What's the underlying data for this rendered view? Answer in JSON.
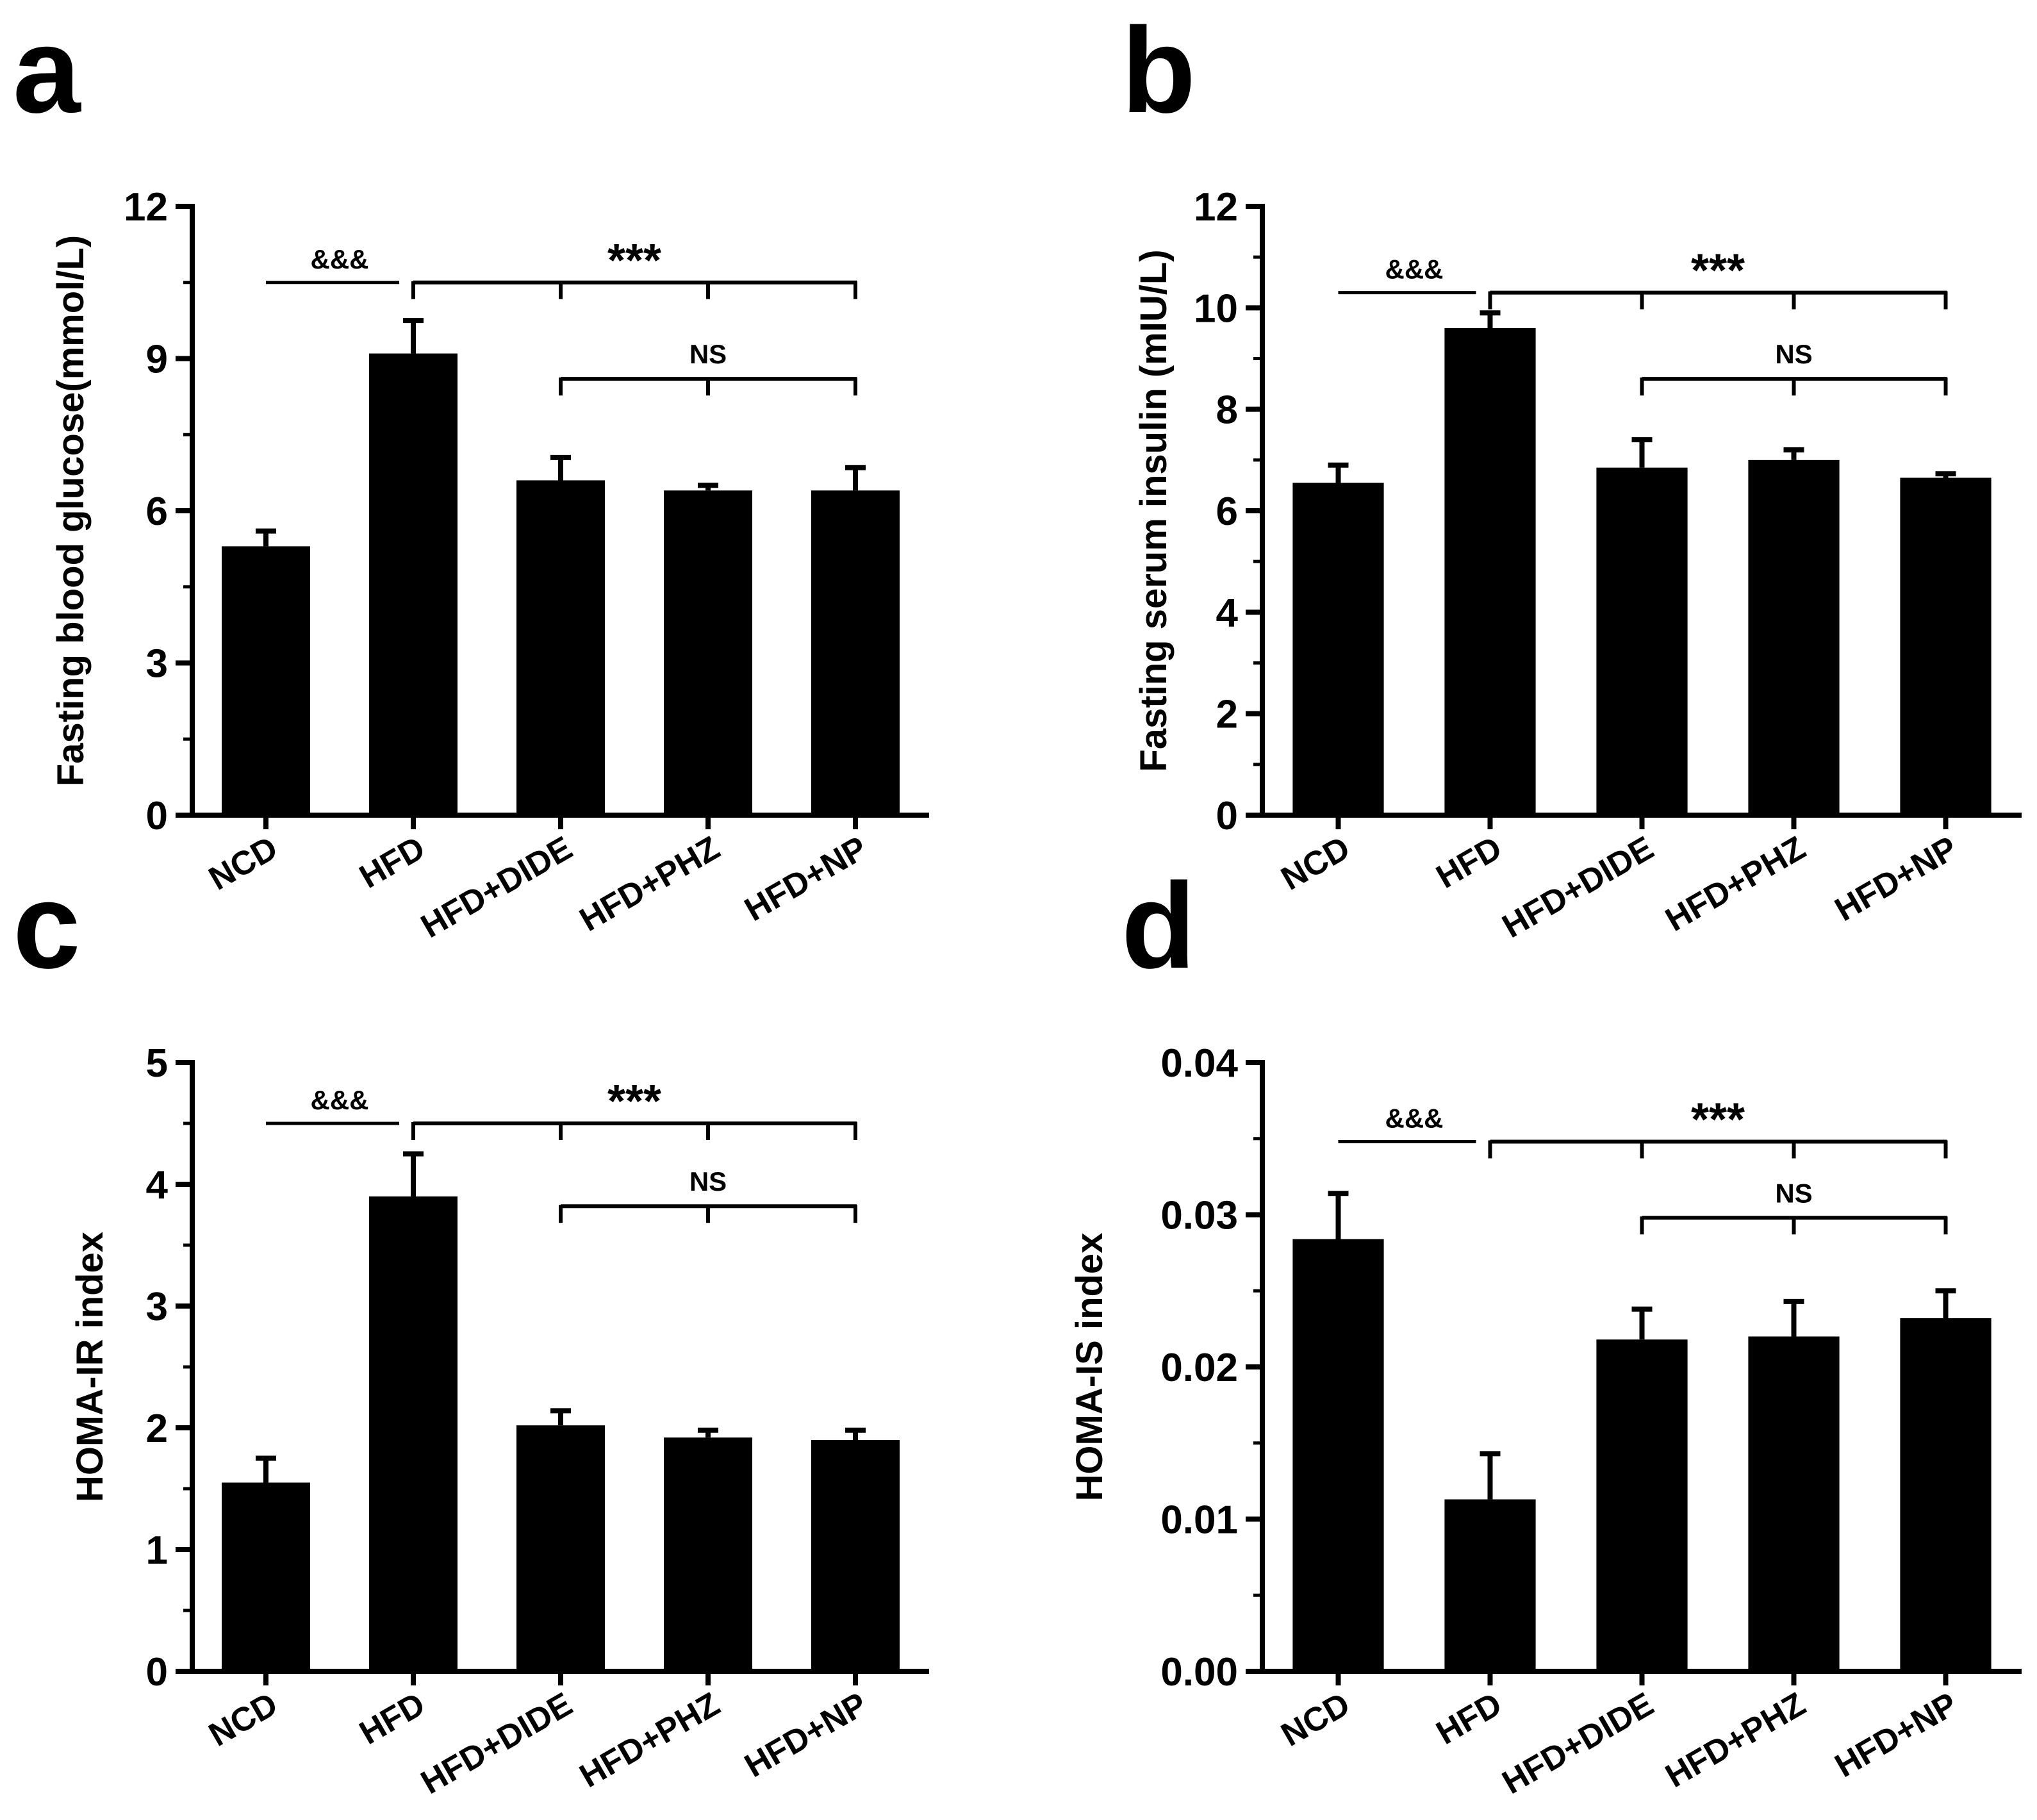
{
  "chart_data": [
    {
      "panel": "a",
      "type": "bar",
      "categories": [
        "NCD",
        "HFD",
        "HFD+DIDE",
        "HFD+PHZ",
        "HFD+NP"
      ],
      "values": [
        5.3,
        9.1,
        6.6,
        6.4,
        6.4
      ],
      "errors": [
        0.3,
        0.65,
        0.45,
        0.1,
        0.45
      ],
      "ylabel": "Fasting blood glucose(mmol/L)",
      "ylim": [
        0,
        12
      ],
      "yticks": [
        "0",
        "3",
        "6",
        "9",
        "12"
      ],
      "yticks_values": [
        0,
        3,
        6,
        9,
        12
      ],
      "minor_step": 1.5,
      "annotations": {
        "amp": "&&&",
        "star": "***",
        "ns": "NS"
      },
      "brackets": {
        "amp_y": 10.5,
        "star_y": 10.5,
        "ns_y": 8.6
      }
    },
    {
      "panel": "b",
      "type": "bar",
      "categories": [
        "NCD",
        "HFD",
        "HFD+DIDE",
        "HFD+PHZ",
        "HFD+NP"
      ],
      "values": [
        6.55,
        9.6,
        6.85,
        7.0,
        6.65
      ],
      "errors": [
        0.35,
        0.3,
        0.55,
        0.2,
        0.08
      ],
      "ylabel": "Fasting serum insulin (mIU/L)",
      "ylim": [
        0,
        12
      ],
      "yticks": [
        "0",
        "2",
        "4",
        "6",
        "8",
        "10",
        "12"
      ],
      "yticks_values": [
        0,
        2,
        4,
        6,
        8,
        10,
        12
      ],
      "minor_step": 1,
      "annotations": {
        "amp": "&&&",
        "star": "***",
        "ns": "NS"
      },
      "brackets": {
        "amp_y": 10.3,
        "star_y": 10.3,
        "ns_y": 8.6
      }
    },
    {
      "panel": "c",
      "type": "bar",
      "categories": [
        "NCD",
        "HFD",
        "HFD+DIDE",
        "HFD+PHZ",
        "HFD+NP"
      ],
      "values": [
        1.55,
        3.9,
        2.02,
        1.92,
        1.9
      ],
      "errors": [
        0.2,
        0.35,
        0.12,
        0.06,
        0.08
      ],
      "ylabel": "HOMA-IR index",
      "ylim": [
        0,
        5
      ],
      "yticks": [
        "0",
        "1",
        "2",
        "3",
        "4",
        "5"
      ],
      "yticks_values": [
        0,
        1,
        2,
        3,
        4,
        5
      ],
      "minor_step": 0.5,
      "annotations": {
        "amp": "&&&",
        "star": "***",
        "ns": "NS"
      },
      "brackets": {
        "amp_y": 4.5,
        "star_y": 4.5,
        "ns_y": 3.82
      }
    },
    {
      "panel": "d",
      "type": "bar",
      "categories": [
        "NCD",
        "HFD",
        "HFD+DIDE",
        "HFD+PHZ",
        "HFD+NP"
      ],
      "values": [
        0.0284,
        0.0113,
        0.0218,
        0.022,
        0.0232
      ],
      "errors": [
        0.003,
        0.003,
        0.002,
        0.0023,
        0.0018
      ],
      "ylabel": "HOMA-IS index",
      "ylim": [
        0,
        0.04
      ],
      "yticks": [
        "0.00",
        "0.01",
        "0.02",
        "0.03",
        "0.04"
      ],
      "yticks_values": [
        0,
        0.01,
        0.02,
        0.03,
        0.04
      ],
      "minor_step": 0.005,
      "annotations": {
        "amp": "&&&",
        "star": "***",
        "ns": "NS"
      },
      "brackets": {
        "amp_y": 0.0348,
        "star_y": 0.0348,
        "ns_y": 0.0298
      }
    }
  ]
}
